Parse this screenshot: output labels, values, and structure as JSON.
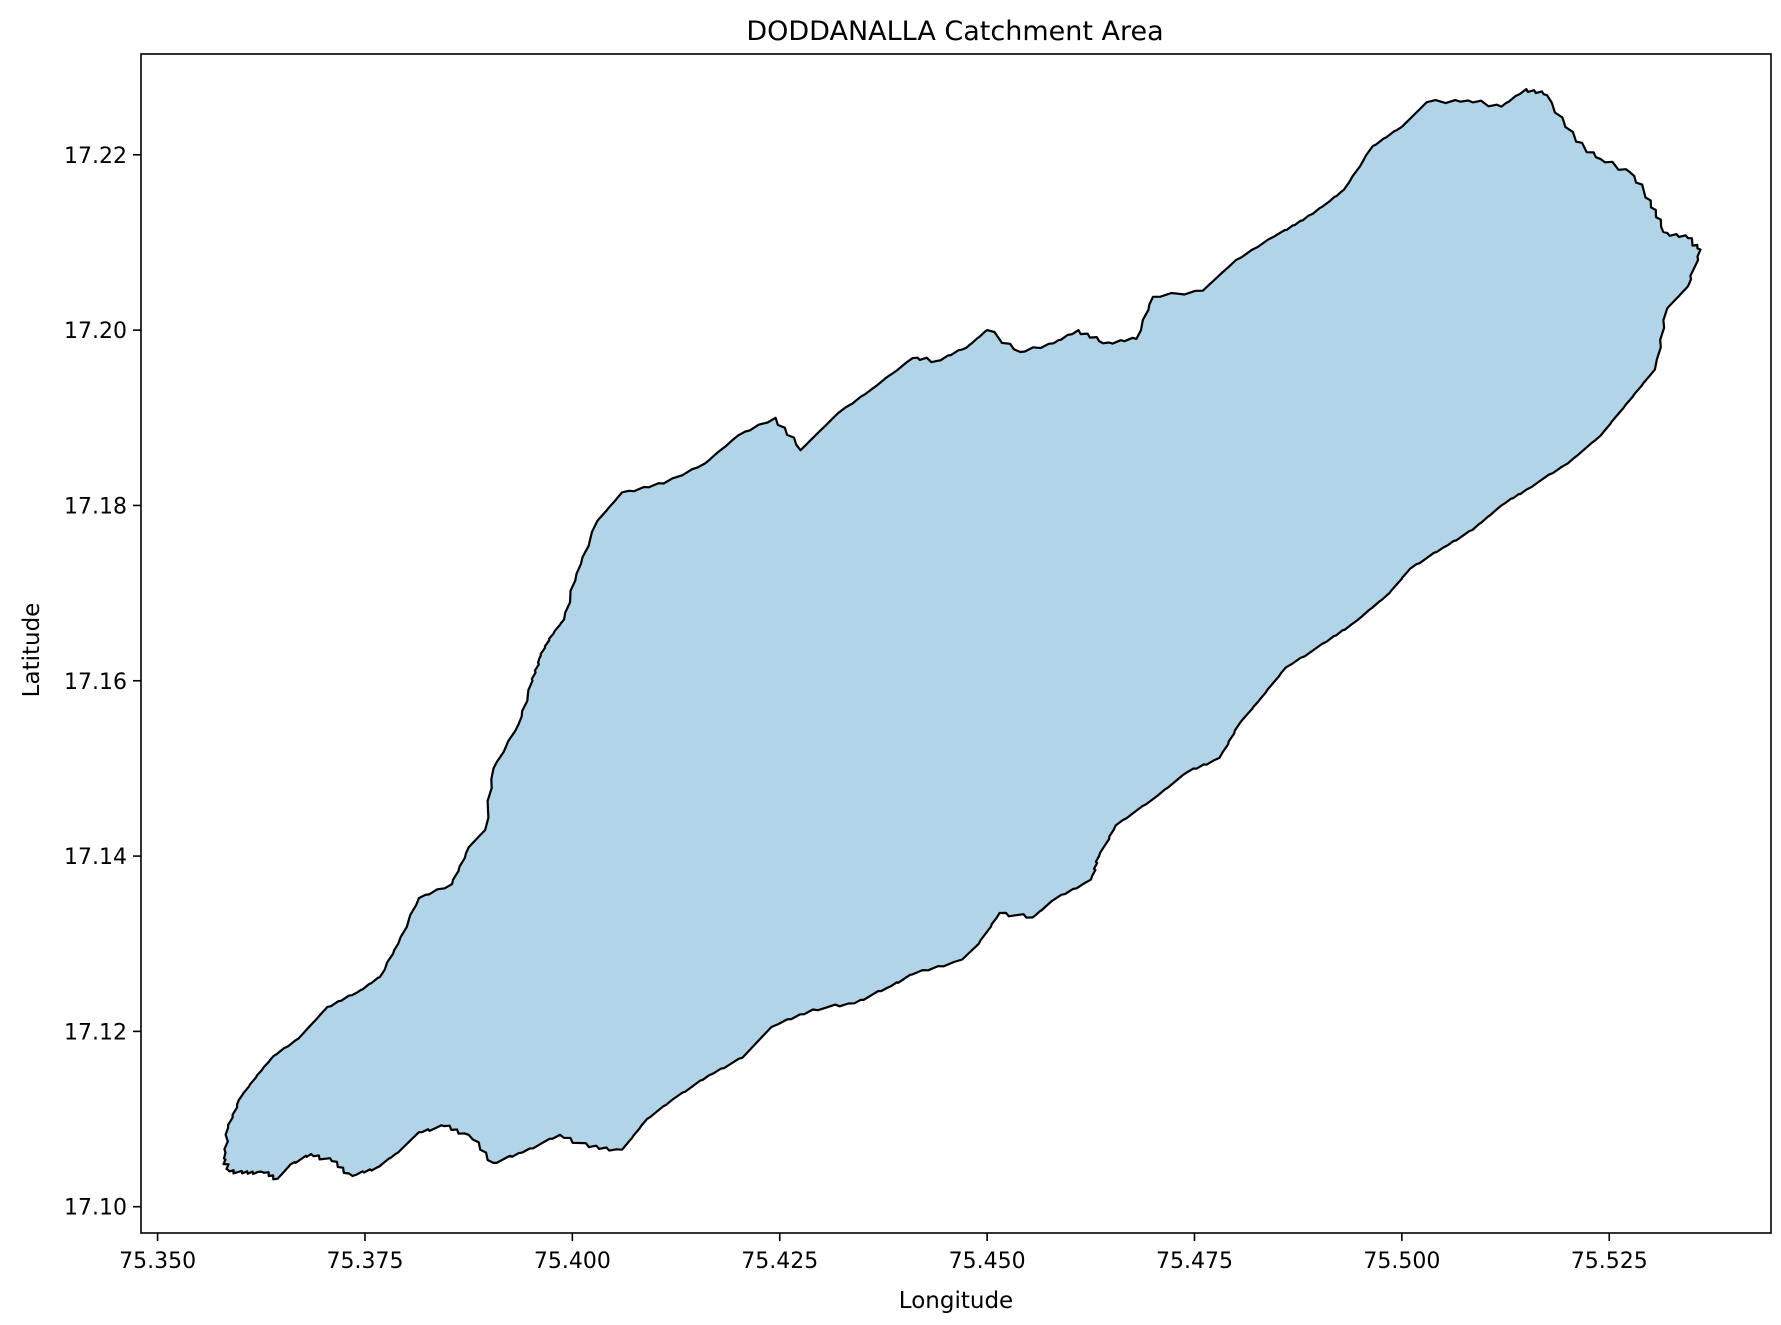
{
  "chart_data": {
    "type": "map",
    "title": "DODDANALLA Catchment Area",
    "xlabel": "Longitude",
    "ylabel": "Latitude",
    "xlim": [
      75.348,
      75.5445
    ],
    "ylim": [
      17.097,
      17.2315
    ],
    "x_ticks": [
      75.35,
      75.375,
      75.4,
      75.425,
      75.45,
      75.475,
      75.5,
      75.525
    ],
    "x_tick_labels": [
      "75.350",
      "75.375",
      "75.400",
      "75.425",
      "75.450",
      "75.475",
      "75.500",
      "75.525"
    ],
    "y_ticks": [
      17.1,
      17.12,
      17.14,
      17.16,
      17.18,
      17.2,
      17.22
    ],
    "y_tick_labels": [
      "17.10",
      "17.12",
      "17.14",
      "17.16",
      "17.18",
      "17.20",
      "17.22"
    ],
    "grid": false,
    "fill_color": "#b2d4e8",
    "edge_color": "#000000",
    "boundary": [
      [
        75.358,
        17.1055
      ],
      [
        75.3585,
        17.109
      ],
      [
        75.3598,
        17.1122
      ],
      [
        75.362,
        17.115
      ],
      [
        75.364,
        17.1172
      ],
      [
        75.367,
        17.1192
      ],
      [
        75.3705,
        17.1228
      ],
      [
        75.374,
        17.1244
      ],
      [
        75.3768,
        17.1262
      ],
      [
        75.379,
        17.13
      ],
      [
        75.3815,
        17.1352
      ],
      [
        75.3855,
        17.1368
      ],
      [
        75.3875,
        17.141
      ],
      [
        75.3895,
        17.143
      ],
      [
        75.3905,
        17.15
      ],
      [
        75.3935,
        17.155
      ],
      [
        75.3952,
        17.16
      ],
      [
        75.396,
        17.1625
      ],
      [
        75.3972,
        17.1648
      ],
      [
        75.399,
        17.167
      ],
      [
        75.4005,
        17.1722
      ],
      [
        75.403,
        17.1782
      ],
      [
        75.406,
        17.1815
      ],
      [
        75.411,
        17.1825
      ],
      [
        75.416,
        17.1848
      ],
      [
        75.42,
        17.188
      ],
      [
        75.4245,
        17.19
      ],
      [
        75.4275,
        17.1863
      ],
      [
        75.432,
        17.1905
      ],
      [
        75.436,
        17.1932
      ],
      [
        75.441,
        17.1968
      ],
      [
        75.444,
        17.1965
      ],
      [
        75.4475,
        17.198
      ],
      [
        75.45,
        17.2
      ],
      [
        75.454,
        17.1975
      ],
      [
        75.458,
        17.1985
      ],
      [
        75.461,
        17.2
      ],
      [
        75.464,
        17.1985
      ],
      [
        75.468,
        17.199
      ],
      [
        75.47,
        17.2038
      ],
      [
        75.476,
        17.2045
      ],
      [
        75.48,
        17.208
      ],
      [
        75.4855,
        17.2112
      ],
      [
        75.488,
        17.2125
      ],
      [
        75.491,
        17.2145
      ],
      [
        75.493,
        17.216
      ],
      [
        75.4965,
        17.221
      ],
      [
        75.5,
        17.2232
      ],
      [
        75.503,
        17.226
      ],
      [
        75.508,
        17.2262
      ],
      [
        75.512,
        17.2255
      ],
      [
        75.515,
        17.2275
      ],
      [
        75.5175,
        17.2268
      ],
      [
        75.521,
        17.2215
      ],
      [
        75.524,
        17.2195
      ],
      [
        75.5275,
        17.218
      ],
      [
        75.53,
        17.2148
      ],
      [
        75.5315,
        17.2112
      ],
      [
        75.5345,
        17.2105
      ],
      [
        75.536,
        17.2092
      ],
      [
        75.5345,
        17.205
      ],
      [
        75.532,
        17.2025
      ],
      [
        75.5305,
        17.1955
      ],
      [
        75.527,
        17.1915
      ],
      [
        75.524,
        17.188
      ],
      [
        75.52,
        17.1848
      ],
      [
        75.515,
        17.1818
      ],
      [
        75.512,
        17.18
      ],
      [
        75.5085,
        17.1772
      ],
      [
        75.505,
        17.1752
      ],
      [
        75.501,
        17.1728
      ],
      [
        75.4985,
        17.17
      ],
      [
        75.4945,
        17.1668
      ],
      [
        75.491,
        17.1645
      ],
      [
        75.486,
        17.1615
      ],
      [
        75.483,
        17.158
      ],
      [
        75.4805,
        17.1552
      ],
      [
        75.478,
        17.1512
      ],
      [
        75.474,
        17.1495
      ],
      [
        75.47,
        17.1465
      ],
      [
        75.4655,
        17.1435
      ],
      [
        75.4635,
        17.14
      ],
      [
        75.4625,
        17.1373
      ],
      [
        75.458,
        17.135
      ],
      [
        75.4555,
        17.133
      ],
      [
        75.4515,
        17.1335
      ],
      [
        75.449,
        17.13
      ],
      [
        75.447,
        17.1282
      ],
      [
        75.441,
        17.1265
      ],
      [
        75.438,
        17.125
      ],
      [
        75.434,
        17.1232
      ],
      [
        75.429,
        17.1225
      ],
      [
        75.424,
        17.1205
      ],
      [
        75.4205,
        17.117
      ],
      [
        75.4165,
        17.115
      ],
      [
        75.4125,
        17.1125
      ],
      [
        75.409,
        17.11
      ],
      [
        75.406,
        17.1065
      ],
      [
        75.402,
        17.1068
      ],
      [
        75.3985,
        17.1082
      ],
      [
        75.394,
        17.1062
      ],
      [
        75.3905,
        17.105
      ],
      [
        75.3875,
        17.1082
      ],
      [
        75.3845,
        17.1092
      ],
      [
        75.3815,
        17.1085
      ],
      [
        75.379,
        17.1062
      ],
      [
        75.3765,
        17.1045
      ],
      [
        75.3735,
        17.1035
      ],
      [
        75.371,
        17.1052
      ],
      [
        75.3685,
        17.106
      ],
      [
        75.366,
        17.1048
      ],
      [
        75.3645,
        17.1032
      ],
      [
        75.3625,
        17.104
      ],
      [
        75.3602,
        17.1038
      ],
      [
        75.3585,
        17.1042
      ]
    ]
  }
}
